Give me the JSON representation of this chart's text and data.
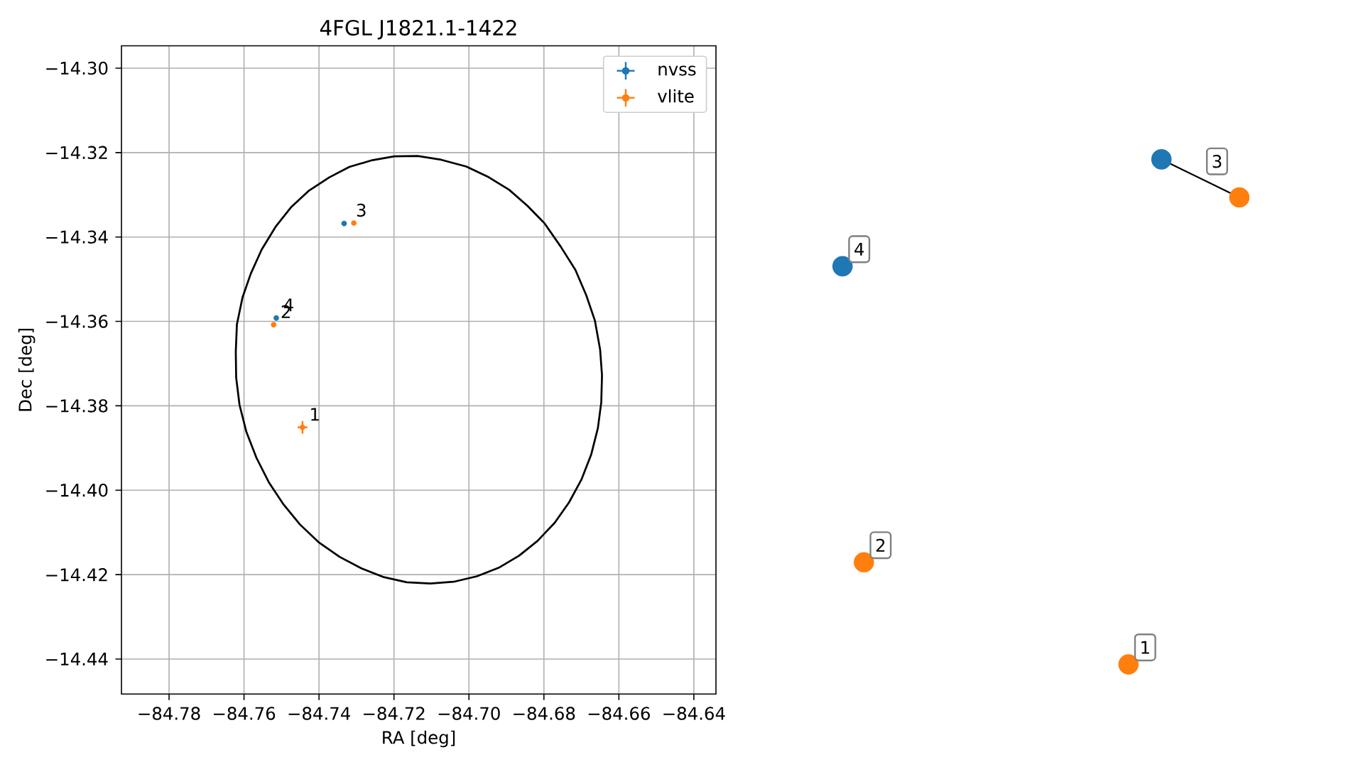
{
  "chart_data": [
    {
      "type": "scatter",
      "title": "4FGL J1821.1-1422",
      "xlabel": "RA [deg]",
      "ylabel": "Dec [deg]",
      "xlim": [
        -84.7927,
        -84.6341
      ],
      "ylim": [
        -14.4483,
        -14.2947
      ],
      "xticks": [
        {
          "value": -84.78,
          "label": "−84.78"
        },
        {
          "value": -84.76,
          "label": "−84.76"
        },
        {
          "value": -84.74,
          "label": "−84.74"
        },
        {
          "value": -84.72,
          "label": "−84.72"
        },
        {
          "value": -84.7,
          "label": "−84.70"
        },
        {
          "value": -84.68,
          "label": "−84.68"
        },
        {
          "value": -84.66,
          "label": "−84.66"
        },
        {
          "value": -84.64,
          "label": "−84.64"
        }
      ],
      "yticks": [
        {
          "value": -14.3,
          "label": "−14.30"
        },
        {
          "value": -14.32,
          "label": "−14.32"
        },
        {
          "value": -14.34,
          "label": "−14.34"
        },
        {
          "value": -14.36,
          "label": "−14.36"
        },
        {
          "value": -14.38,
          "label": "−14.38"
        },
        {
          "value": -14.4,
          "label": "−14.40"
        },
        {
          "value": -14.42,
          "label": "−14.42"
        },
        {
          "value": -14.44,
          "label": "−14.44"
        }
      ],
      "grid": true,
      "legend": "top right",
      "marker": "circle",
      "series": [
        {
          "name": "nvss",
          "color": "#1f77b4",
          "x": [
            -84.7333,
            -84.7514
          ],
          "values": [
            -14.3368,
            -14.3592
          ]
        },
        {
          "name": "vlite",
          "color": "#ff7f0e",
          "x": [
            -84.7307,
            -84.7521,
            -84.7444
          ],
          "values": [
            -14.3367,
            -14.3608,
            -14.3851
          ],
          "errors": [
            null,
            null,
            0.0015
          ],
          "xerrors": [
            null,
            null,
            0.0013
          ]
        }
      ],
      "annotations": [
        {
          "text": "1",
          "x": -84.7444,
          "y": -14.3851
        },
        {
          "text": "2",
          "x": -84.7521,
          "y": -14.3608
        },
        {
          "text": "3",
          "x": -84.732,
          "y": -14.3368
        },
        {
          "text": "4",
          "x": -84.7514,
          "y": -14.3592
        }
      ]
    },
    {
      "type": "other",
      "annotations": [
        "1",
        "2",
        "3",
        "4"
      ]
    }
  ]
}
